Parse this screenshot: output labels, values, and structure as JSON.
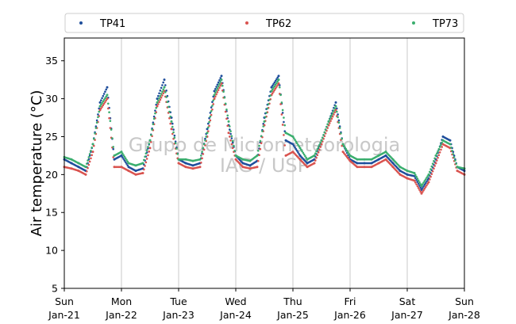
{
  "chart_data": {
    "type": "scatter",
    "title": "",
    "xlabel": "",
    "ylabel": "Air temperature (°C)",
    "ylim": [
      5,
      38
    ],
    "xlim": [
      "2024-01-21",
      "2024-01-28"
    ],
    "yticks": [
      5,
      10,
      15,
      20,
      25,
      30,
      35
    ],
    "xticks": [
      {
        "day": "Sun",
        "date": "Jan-21"
      },
      {
        "day": "Mon",
        "date": "Jan-22"
      },
      {
        "day": "Tue",
        "date": "Jan-23"
      },
      {
        "day": "Wed",
        "date": "Jan-24"
      },
      {
        "day": "Thu",
        "date": "Jan-25"
      },
      {
        "day": "Fri",
        "date": "Jan-26"
      },
      {
        "day": "Sat",
        "date": "Jan-27"
      },
      {
        "day": "Sun",
        "date": "Jan-28"
      }
    ],
    "grid": "vertical",
    "legend": "top",
    "watermark": [
      "Grupo de Micrometeorologia",
      "IAG / USP"
    ],
    "series": [
      {
        "name": "TP41",
        "color": "#1f4e9c",
        "x": [
          "2024-01-21 00:00",
          "2024-01-21 03:00",
          "2024-01-21 06:00",
          "2024-01-21 09:00",
          "2024-01-21 12:00",
          "2024-01-21 15:00",
          "2024-01-21 18:00",
          "2024-01-21 21:00",
          "2024-01-22 00:00",
          "2024-01-22 03:00",
          "2024-01-22 06:00",
          "2024-01-22 09:00",
          "2024-01-22 12:00",
          "2024-01-22 15:00",
          "2024-01-22 18:00",
          "2024-01-22 21:00",
          "2024-01-23 00:00",
          "2024-01-23 03:00",
          "2024-01-23 06:00",
          "2024-01-23 09:00",
          "2024-01-23 12:00",
          "2024-01-23 15:00",
          "2024-01-23 18:00",
          "2024-01-23 21:00",
          "2024-01-24 00:00",
          "2024-01-24 03:00",
          "2024-01-24 06:00",
          "2024-01-24 09:00",
          "2024-01-24 12:00",
          "2024-01-24 15:00",
          "2024-01-24 18:00",
          "2024-01-24 21:00",
          "2024-01-25 00:00",
          "2024-01-25 03:00",
          "2024-01-25 06:00",
          "2024-01-25 09:00",
          "2024-01-25 12:00",
          "2024-01-25 15:00",
          "2024-01-25 18:00",
          "2024-01-25 21:00",
          "2024-01-26 00:00",
          "2024-01-26 03:00",
          "2024-01-26 06:00",
          "2024-01-26 09:00",
          "2024-01-26 12:00",
          "2024-01-26 15:00",
          "2024-01-26 18:00",
          "2024-01-26 21:00",
          "2024-01-27 00:00",
          "2024-01-27 03:00",
          "2024-01-27 06:00",
          "2024-01-27 09:00",
          "2024-01-27 12:00",
          "2024-01-27 15:00",
          "2024-01-27 18:00",
          "2024-01-27 21:00",
          "2024-01-28 00:00"
        ],
        "y": [
          22.0,
          21.5,
          21.0,
          20.5,
          24.0,
          29.5,
          31.5,
          22.0,
          22.5,
          21.0,
          20.5,
          20.8,
          24.5,
          30.0,
          32.5,
          27.5,
          22.0,
          21.5,
          21.2,
          21.5,
          26.0,
          31.0,
          33.0,
          26.5,
          22.5,
          21.5,
          21.2,
          21.8,
          27.5,
          31.5,
          33.0,
          24.5,
          24.0,
          22.5,
          21.5,
          22.0,
          24.5,
          27.0,
          29.5,
          24.0,
          22.0,
          21.5,
          21.5,
          21.5,
          22.0,
          22.5,
          21.5,
          20.5,
          20.0,
          19.8,
          18.0,
          19.5,
          22.0,
          25.0,
          24.5,
          21.0,
          20.5
        ]
      },
      {
        "name": "TP62",
        "color": "#d9534f",
        "x": [
          "2024-01-21 00:00",
          "2024-01-21 03:00",
          "2024-01-21 06:00",
          "2024-01-21 09:00",
          "2024-01-21 12:00",
          "2024-01-21 15:00",
          "2024-01-21 18:00",
          "2024-01-21 21:00",
          "2024-01-22 00:00",
          "2024-01-22 03:00",
          "2024-01-22 06:00",
          "2024-01-22 09:00",
          "2024-01-22 12:00",
          "2024-01-22 15:00",
          "2024-01-22 18:00",
          "2024-01-22 21:00",
          "2024-01-23 00:00",
          "2024-01-23 03:00",
          "2024-01-23 06:00",
          "2024-01-23 09:00",
          "2024-01-23 12:00",
          "2024-01-23 15:00",
          "2024-01-23 18:00",
          "2024-01-23 21:00",
          "2024-01-24 00:00",
          "2024-01-24 03:00",
          "2024-01-24 06:00",
          "2024-01-24 09:00",
          "2024-01-24 12:00",
          "2024-01-24 15:00",
          "2024-01-24 18:00",
          "2024-01-24 21:00",
          "2024-01-25 00:00",
          "2024-01-25 03:00",
          "2024-01-25 06:00",
          "2024-01-25 09:00",
          "2024-01-25 12:00",
          "2024-01-25 15:00",
          "2024-01-25 18:00",
          "2024-01-25 21:00",
          "2024-01-26 00:00",
          "2024-01-26 03:00",
          "2024-01-26 06:00",
          "2024-01-26 09:00",
          "2024-01-26 12:00",
          "2024-01-26 15:00",
          "2024-01-26 18:00",
          "2024-01-26 21:00",
          "2024-01-27 00:00",
          "2024-01-27 03:00",
          "2024-01-27 06:00",
          "2024-01-27 09:00",
          "2024-01-27 12:00",
          "2024-01-27 15:00",
          "2024-01-27 18:00",
          "2024-01-27 21:00",
          "2024-01-28 00:00"
        ],
        "y": [
          21.0,
          20.8,
          20.5,
          20.0,
          23.0,
          28.5,
          30.0,
          21.0,
          21.0,
          20.5,
          20.0,
          20.2,
          23.5,
          29.0,
          31.0,
          26.0,
          21.5,
          21.0,
          20.8,
          21.0,
          25.0,
          30.0,
          32.0,
          25.5,
          22.0,
          21.0,
          20.8,
          21.0,
          26.5,
          30.5,
          32.0,
          22.5,
          23.0,
          22.0,
          21.0,
          21.5,
          24.0,
          26.5,
          28.5,
          23.0,
          21.8,
          21.0,
          21.0,
          21.0,
          21.5,
          22.0,
          21.0,
          20.0,
          19.5,
          19.2,
          17.5,
          19.0,
          21.5,
          24.0,
          23.5,
          20.5,
          20.0
        ]
      },
      {
        "name": "TP73",
        "color": "#3aae6e",
        "x": [
          "2024-01-21 00:00",
          "2024-01-21 03:00",
          "2024-01-21 06:00",
          "2024-01-21 09:00",
          "2024-01-21 12:00",
          "2024-01-21 15:00",
          "2024-01-21 18:00",
          "2024-01-21 21:00",
          "2024-01-22 00:00",
          "2024-01-22 03:00",
          "2024-01-22 06:00",
          "2024-01-22 09:00",
          "2024-01-22 12:00",
          "2024-01-22 15:00",
          "2024-01-22 18:00",
          "2024-01-22 21:00",
          "2024-01-23 00:00",
          "2024-01-23 03:00",
          "2024-01-23 06:00",
          "2024-01-23 09:00",
          "2024-01-23 12:00",
          "2024-01-23 15:00",
          "2024-01-23 18:00",
          "2024-01-23 21:00",
          "2024-01-24 00:00",
          "2024-01-24 03:00",
          "2024-01-24 06:00",
          "2024-01-24 09:00",
          "2024-01-24 12:00",
          "2024-01-24 15:00",
          "2024-01-24 18:00",
          "2024-01-24 21:00",
          "2024-01-25 00:00",
          "2024-01-25 03:00",
          "2024-01-25 06:00",
          "2024-01-25 09:00",
          "2024-01-25 12:00",
          "2024-01-25 15:00",
          "2024-01-25 18:00",
          "2024-01-25 21:00",
          "2024-01-26 00:00",
          "2024-01-26 03:00",
          "2024-01-26 06:00",
          "2024-01-26 09:00",
          "2024-01-26 12:00",
          "2024-01-26 15:00",
          "2024-01-26 18:00",
          "2024-01-26 21:00",
          "2024-01-27 00:00",
          "2024-01-27 03:00",
          "2024-01-27 06:00",
          "2024-01-27 09:00",
          "2024-01-27 12:00",
          "2024-01-27 15:00",
          "2024-01-27 18:00",
          "2024-01-27 21:00",
          "2024-01-28 00:00"
        ],
        "y": [
          22.3,
          22.0,
          21.5,
          21.0,
          24.0,
          29.0,
          30.5,
          22.5,
          23.0,
          21.5,
          21.2,
          21.5,
          24.5,
          29.5,
          31.5,
          27.0,
          22.0,
          22.0,
          21.8,
          22.0,
          25.5,
          30.5,
          32.5,
          27.0,
          22.5,
          22.0,
          21.8,
          22.5,
          27.0,
          31.0,
          32.5,
          25.5,
          25.0,
          23.5,
          22.0,
          22.5,
          24.5,
          27.0,
          29.0,
          24.0,
          22.5,
          22.0,
          22.0,
          22.0,
          22.5,
          23.0,
          22.0,
          21.0,
          20.5,
          20.2,
          18.5,
          20.0,
          22.5,
          24.5,
          24.0,
          21.0,
          20.8
        ]
      }
    ]
  }
}
